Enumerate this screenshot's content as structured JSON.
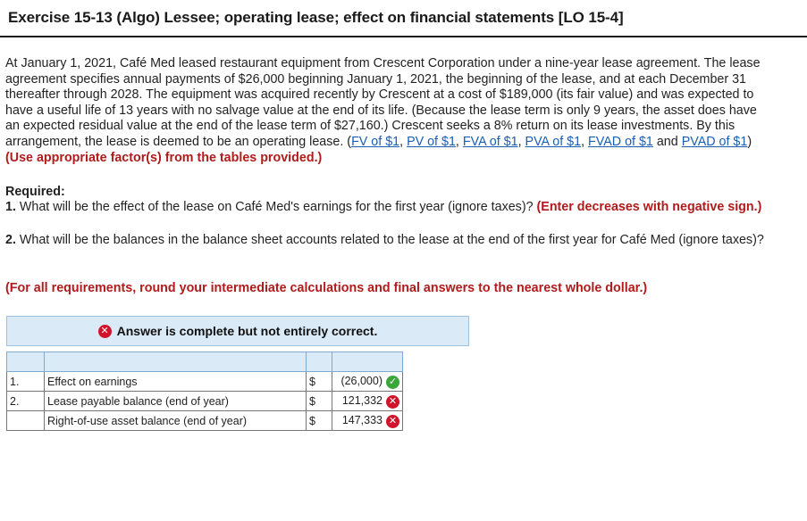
{
  "title": "Exercise 15-13 (Algo) Lessee; operating lease; effect on financial statements [LO 15-4]",
  "paragraph": {
    "text": "At January 1, 2021, Café Med leased restaurant equipment from Crescent Corporation under a nine-year lease agreement. The lease agreement specifies annual payments of $26,000 beginning January 1, 2021, the beginning of the lease, and at each December 31 thereafter through 2028. The equipment was acquired recently by Crescent at a cost of $189,000 (its fair value) and was expected to have a useful life of 13 years with no salvage value at the end of its life. (Because the lease term is only 9 years, the asset does have an expected residual value at the end of the lease term of $27,160.) Crescent seeks a 8% return on its lease investments. By this arrangement, the lease is deemed to be an operating lease. (",
    "links": [
      "FV of $1",
      "PV of $1",
      "FVA of $1",
      "PVA of $1",
      "FVAD of $1",
      "PVAD of $1"
    ],
    "and": " and ",
    "close": ")",
    "note": "(Use appropriate factor(s) from the tables provided.)"
  },
  "required": {
    "heading": "Required:",
    "r1_num": "1.",
    "r1_text": " What will be the effect of the lease on Café Med's earnings for the first year (ignore taxes)? ",
    "r1_note": "(Enter decreases with negative sign.)",
    "r2_num": "2.",
    "r2_text": " What will be the balances in the balance sheet accounts related to the lease at the end of the first year for Café Med (ignore taxes)?",
    "rounding": "(For all requirements, round your intermediate calculations and final answers to the nearest whole dollar.)"
  },
  "banner": {
    "text": "Answer is complete but not entirely correct."
  },
  "table": {
    "rows": [
      {
        "num": "1.",
        "label": "Effect on earnings",
        "cur": "$",
        "value": "(26,000)",
        "status": "correct"
      },
      {
        "num": "2.",
        "label": "Lease payable balance (end of year)",
        "cur": "$",
        "value": "121,332",
        "status": "incorrect"
      },
      {
        "num": "",
        "label": "Right-of-use asset balance (end of year)",
        "cur": "$",
        "value": "147,333",
        "status": "incorrect"
      }
    ]
  },
  "colors": {
    "red_note": "#b11b1b",
    "link": "#1a5fb4",
    "banner_bg": "#dbeaf7",
    "check_green": "#3aa63a",
    "x_red": "#d0142b"
  }
}
